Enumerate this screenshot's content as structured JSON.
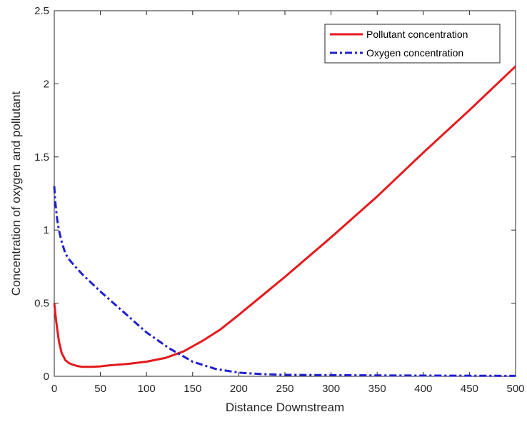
{
  "chart_data": {
    "type": "line",
    "title": "",
    "xlabel": "Distance Downstream",
    "ylabel": "Concentration of oxygen and pollutant",
    "xlim": [
      0,
      500
    ],
    "ylim": [
      0,
      2.5
    ],
    "xticks": [
      0,
      50,
      100,
      150,
      200,
      250,
      300,
      350,
      400,
      450,
      500
    ],
    "yticks": [
      0,
      0.5,
      1,
      1.5,
      2,
      2.5
    ],
    "xtick_labels": [
      "0",
      "50",
      "100",
      "150",
      "200",
      "250",
      "300",
      "350",
      "400",
      "450",
      "500"
    ],
    "ytick_labels": [
      "0",
      "0.5",
      "1",
      "1.5",
      "2",
      "2.5"
    ],
    "grid": false,
    "legend_position": "top-right",
    "series": [
      {
        "name": "Pollutant concentration",
        "color": "#e41a1c",
        "line_style": "solid",
        "x": [
          0,
          2,
          5,
          8,
          12,
          16,
          20,
          25,
          30,
          40,
          50,
          60,
          80,
          100,
          120,
          140,
          160,
          180,
          200,
          250,
          300,
          350,
          400,
          450,
          500
        ],
        "y": [
          0.5,
          0.38,
          0.24,
          0.16,
          0.11,
          0.09,
          0.08,
          0.07,
          0.065,
          0.065,
          0.068,
          0.075,
          0.085,
          0.1,
          0.125,
          0.17,
          0.24,
          0.32,
          0.42,
          0.68,
          0.95,
          1.23,
          1.53,
          1.82,
          2.12
        ]
      },
      {
        "name": "Oxygen concentration",
        "color": "#1f1fd0",
        "line_style": "dashdot",
        "x": [
          0,
          1,
          3,
          5,
          8,
          12,
          16,
          20,
          30,
          40,
          50,
          75,
          100,
          125,
          150,
          175,
          200,
          225,
          250,
          300,
          350,
          400,
          450,
          500
        ],
        "y": [
          1.3,
          1.2,
          1.08,
          1.0,
          0.92,
          0.84,
          0.8,
          0.77,
          0.7,
          0.64,
          0.58,
          0.44,
          0.3,
          0.19,
          0.1,
          0.05,
          0.025,
          0.015,
          0.01,
          0.008,
          0.006,
          0.005,
          0.004,
          0.003
        ]
      }
    ]
  }
}
